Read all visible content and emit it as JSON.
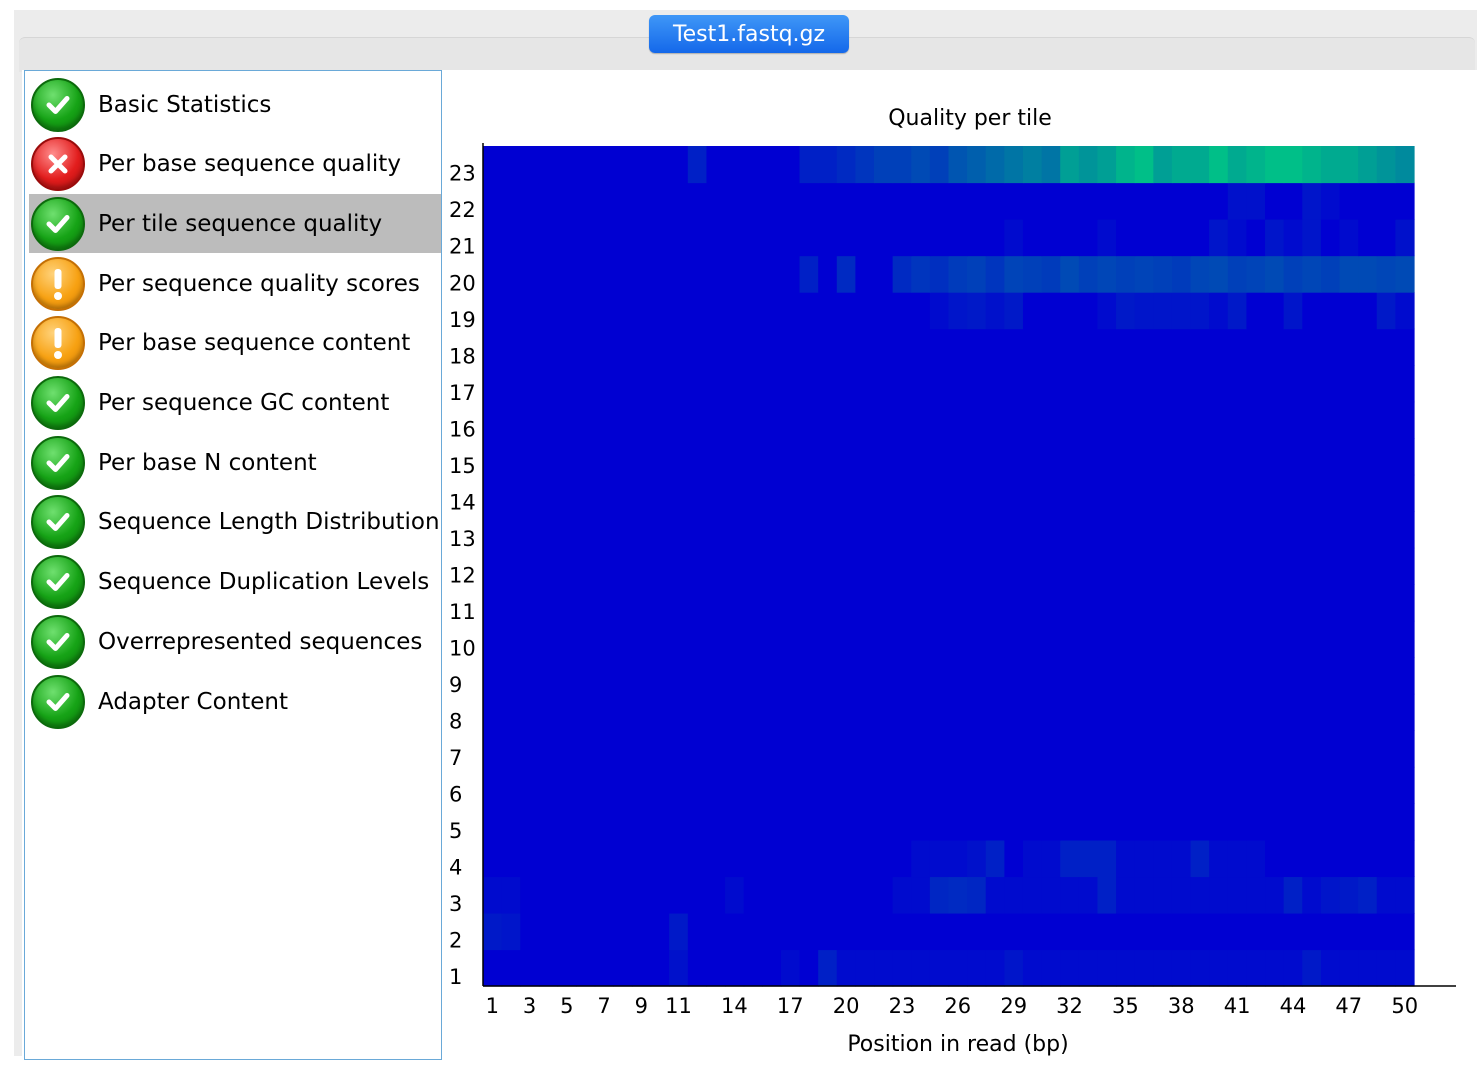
{
  "tab": {
    "label": "Test1.fastq.gz"
  },
  "modules": [
    {
      "label": "Basic Statistics",
      "status": "pass",
      "icon": "check-icon"
    },
    {
      "label": "Per base sequence quality",
      "status": "fail",
      "icon": "cross-icon"
    },
    {
      "label": "Per tile sequence quality",
      "status": "pass",
      "icon": "check-icon",
      "selected": true
    },
    {
      "label": "Per sequence quality scores",
      "status": "warn",
      "icon": "warning-icon"
    },
    {
      "label": "Per base sequence content",
      "status": "warn",
      "icon": "warning-icon"
    },
    {
      "label": "Per sequence GC content",
      "status": "pass",
      "icon": "check-icon"
    },
    {
      "label": "Per base N content",
      "status": "pass",
      "icon": "check-icon"
    },
    {
      "label": "Sequence Length Distribution",
      "status": "pass",
      "icon": "check-icon"
    },
    {
      "label": "Sequence Duplication Levels",
      "status": "pass",
      "icon": "check-icon"
    },
    {
      "label": "Overrepresented sequences",
      "status": "pass",
      "icon": "check-icon"
    },
    {
      "label": "Adapter Content",
      "status": "pass",
      "icon": "check-icon"
    }
  ],
  "colors": {
    "pass": "#16a316",
    "fail": "#e21d1d",
    "warn": "#f7a112",
    "heat_base": "#0000d2",
    "heat_high": "#00d480",
    "tab_blue": "#1468ea",
    "selected_row": "#bcbcbc"
  },
  "chart_data": {
    "type": "heatmap",
    "title": "Quality per tile",
    "xlabel": "Position in read (bp)",
    "ylabel": "",
    "x_positions": [
      1,
      2,
      3,
      4,
      5,
      6,
      7,
      8,
      9,
      10,
      11,
      12,
      13,
      14,
      15,
      16,
      17,
      18,
      19,
      20,
      21,
      22,
      23,
      24,
      25,
      26,
      27,
      28,
      29,
      30,
      31,
      32,
      33,
      34,
      35,
      36,
      37,
      38,
      39,
      40,
      41,
      42,
      43,
      44,
      45,
      46,
      47,
      48,
      49,
      50
    ],
    "x_tick_labels": [
      "1",
      "3",
      "5",
      "7",
      "9",
      "11",
      "14",
      "17",
      "20",
      "23",
      "26",
      "29",
      "32",
      "35",
      "38",
      "41",
      "44",
      "47",
      "50"
    ],
    "y_tick_labels": [
      "1",
      "2",
      "3",
      "4",
      "5",
      "6",
      "7",
      "8",
      "9",
      "10",
      "11",
      "12",
      "13",
      "14",
      "15",
      "16",
      "17",
      "18",
      "19",
      "20",
      "21",
      "22",
      "23"
    ],
    "value_note": "0 = lowest deviation (dark blue), 1 = highest (green)",
    "rows": {
      "23": [
        0,
        0,
        0,
        0,
        0,
        0,
        0,
        0,
        0,
        0,
        0,
        0.15,
        0,
        0,
        0,
        0,
        0,
        0.15,
        0.15,
        0.2,
        0.25,
        0.3,
        0.3,
        0.35,
        0.3,
        0.4,
        0.45,
        0.5,
        0.55,
        0.6,
        0.55,
        0.75,
        0.7,
        0.75,
        0.85,
        0.9,
        0.75,
        0.8,
        0.8,
        0.9,
        0.8,
        0.85,
        0.9,
        0.9,
        0.85,
        0.8,
        0.8,
        0.75,
        0.7,
        0.65
      ],
      "22": [
        0,
        0,
        0,
        0,
        0,
        0,
        0,
        0,
        0,
        0,
        0,
        0,
        0,
        0,
        0,
        0,
        0,
        0,
        0,
        0,
        0,
        0,
        0,
        0,
        0,
        0,
        0,
        0,
        0,
        0,
        0,
        0,
        0,
        0,
        0,
        0,
        0,
        0,
        0,
        0,
        0.08,
        0.08,
        0,
        0,
        0.1,
        0.05,
        0,
        0,
        0,
        0
      ],
      "21": [
        0,
        0,
        0,
        0,
        0,
        0,
        0,
        0,
        0,
        0,
        0,
        0,
        0,
        0,
        0,
        0,
        0,
        0,
        0,
        0,
        0,
        0,
        0,
        0,
        0,
        0,
        0,
        0,
        0.05,
        0,
        0,
        0,
        0,
        0.05,
        0,
        0,
        0,
        0,
        0,
        0.1,
        0.05,
        0,
        0.1,
        0.05,
        0.1,
        0,
        0.05,
        0,
        0,
        0.08
      ],
      "20": [
        0,
        0,
        0,
        0,
        0,
        0,
        0,
        0,
        0,
        0,
        0,
        0,
        0,
        0,
        0,
        0,
        0,
        0.15,
        0,
        0.2,
        0,
        0,
        0.2,
        0.25,
        0.22,
        0.28,
        0.3,
        0.25,
        0.32,
        0.3,
        0.28,
        0.35,
        0.3,
        0.33,
        0.3,
        0.32,
        0.3,
        0.28,
        0.33,
        0.35,
        0.3,
        0.32,
        0.35,
        0.3,
        0.33,
        0.3,
        0.35,
        0.35,
        0.33,
        0.35
      ],
      "19": [
        0,
        0,
        0,
        0,
        0,
        0,
        0,
        0,
        0,
        0,
        0,
        0,
        0,
        0,
        0,
        0,
        0,
        0,
        0,
        0,
        0,
        0,
        0,
        0,
        0.05,
        0.1,
        0.12,
        0.08,
        0.12,
        0,
        0,
        0,
        0,
        0.05,
        0.12,
        0.1,
        0.1,
        0.1,
        0.1,
        0.05,
        0.12,
        0,
        0,
        0.1,
        0,
        0,
        0,
        0,
        0.12,
        0.05
      ],
      "18": [
        0,
        0,
        0,
        0,
        0,
        0,
        0,
        0,
        0,
        0,
        0,
        0,
        0,
        0,
        0,
        0,
        0,
        0,
        0,
        0,
        0,
        0,
        0,
        0,
        0,
        0,
        0,
        0,
        0,
        0,
        0,
        0,
        0,
        0,
        0,
        0,
        0,
        0,
        0,
        0,
        0,
        0,
        0,
        0,
        0,
        0,
        0,
        0,
        0,
        0
      ],
      "17": [
        0,
        0,
        0,
        0,
        0,
        0,
        0,
        0,
        0,
        0,
        0,
        0,
        0,
        0,
        0,
        0,
        0,
        0,
        0,
        0,
        0,
        0,
        0,
        0,
        0,
        0,
        0,
        0,
        0,
        0,
        0,
        0,
        0,
        0,
        0,
        0,
        0,
        0,
        0,
        0,
        0,
        0,
        0,
        0,
        0,
        0,
        0,
        0,
        0,
        0
      ],
      "16": [
        0,
        0,
        0,
        0,
        0,
        0,
        0,
        0,
        0,
        0,
        0,
        0,
        0,
        0,
        0,
        0,
        0,
        0,
        0,
        0,
        0,
        0,
        0,
        0,
        0,
        0,
        0,
        0,
        0,
        0,
        0,
        0,
        0,
        0,
        0,
        0,
        0,
        0,
        0,
        0,
        0,
        0,
        0,
        0,
        0,
        0,
        0,
        0,
        0,
        0
      ],
      "15": [
        0,
        0,
        0,
        0,
        0,
        0,
        0,
        0,
        0,
        0,
        0,
        0,
        0,
        0,
        0,
        0,
        0,
        0,
        0,
        0,
        0,
        0,
        0,
        0,
        0,
        0,
        0,
        0,
        0,
        0,
        0,
        0,
        0,
        0,
        0,
        0,
        0,
        0,
        0,
        0,
        0,
        0,
        0,
        0,
        0,
        0,
        0,
        0,
        0,
        0
      ],
      "14": [
        0,
        0,
        0,
        0,
        0,
        0,
        0,
        0,
        0,
        0,
        0,
        0,
        0,
        0,
        0,
        0,
        0,
        0,
        0,
        0,
        0,
        0,
        0,
        0,
        0,
        0,
        0,
        0,
        0,
        0,
        0,
        0,
        0,
        0,
        0,
        0,
        0,
        0,
        0,
        0,
        0,
        0,
        0,
        0,
        0,
        0,
        0,
        0,
        0,
        0
      ],
      "13": [
        0,
        0,
        0,
        0,
        0,
        0,
        0,
        0,
        0,
        0,
        0,
        0,
        0,
        0,
        0,
        0,
        0,
        0,
        0,
        0,
        0,
        0,
        0,
        0,
        0,
        0,
        0,
        0,
        0,
        0,
        0,
        0,
        0,
        0,
        0,
        0,
        0,
        0,
        0,
        0,
        0,
        0,
        0,
        0,
        0,
        0,
        0,
        0,
        0,
        0
      ],
      "12": [
        0,
        0,
        0,
        0,
        0,
        0,
        0,
        0,
        0,
        0,
        0,
        0,
        0,
        0,
        0,
        0,
        0,
        0,
        0,
        0,
        0,
        0,
        0,
        0,
        0,
        0,
        0,
        0,
        0,
        0,
        0,
        0,
        0,
        0,
        0,
        0,
        0,
        0,
        0,
        0,
        0,
        0,
        0,
        0,
        0,
        0,
        0,
        0,
        0,
        0
      ],
      "11": [
        0,
        0,
        0,
        0,
        0,
        0,
        0,
        0,
        0,
        0,
        0,
        0,
        0,
        0,
        0,
        0,
        0,
        0,
        0,
        0,
        0,
        0,
        0,
        0,
        0,
        0,
        0,
        0,
        0,
        0,
        0,
        0,
        0,
        0,
        0,
        0,
        0,
        0,
        0,
        0,
        0,
        0,
        0,
        0,
        0,
        0,
        0,
        0,
        0,
        0
      ],
      "10": [
        0,
        0,
        0,
        0,
        0,
        0,
        0,
        0,
        0,
        0,
        0,
        0,
        0,
        0,
        0,
        0,
        0,
        0,
        0,
        0,
        0,
        0,
        0,
        0,
        0,
        0,
        0,
        0,
        0,
        0,
        0,
        0,
        0,
        0,
        0,
        0,
        0,
        0,
        0,
        0,
        0,
        0,
        0,
        0,
        0,
        0,
        0,
        0,
        0,
        0
      ],
      "9": [
        0,
        0,
        0,
        0,
        0,
        0,
        0,
        0,
        0,
        0,
        0,
        0,
        0,
        0,
        0,
        0,
        0,
        0,
        0,
        0,
        0,
        0,
        0,
        0,
        0,
        0,
        0,
        0,
        0,
        0,
        0,
        0,
        0,
        0,
        0,
        0,
        0,
        0,
        0,
        0,
        0,
        0,
        0,
        0,
        0,
        0,
        0,
        0,
        0,
        0
      ],
      "8": [
        0,
        0,
        0,
        0,
        0,
        0,
        0,
        0,
        0,
        0,
        0,
        0,
        0,
        0,
        0,
        0,
        0,
        0,
        0,
        0,
        0,
        0,
        0,
        0,
        0,
        0,
        0,
        0,
        0,
        0,
        0,
        0,
        0,
        0,
        0,
        0,
        0,
        0,
        0,
        0,
        0,
        0,
        0,
        0,
        0,
        0,
        0,
        0,
        0,
        0
      ],
      "7": [
        0,
        0,
        0,
        0,
        0,
        0,
        0,
        0,
        0,
        0,
        0,
        0,
        0,
        0,
        0,
        0,
        0,
        0,
        0,
        0,
        0,
        0,
        0,
        0,
        0,
        0,
        0,
        0,
        0,
        0,
        0,
        0,
        0,
        0,
        0,
        0,
        0,
        0,
        0,
        0,
        0,
        0,
        0,
        0,
        0,
        0,
        0,
        0,
        0,
        0
      ],
      "6": [
        0,
        0,
        0,
        0,
        0,
        0,
        0,
        0,
        0,
        0,
        0,
        0,
        0,
        0,
        0,
        0,
        0,
        0,
        0,
        0,
        0,
        0,
        0,
        0,
        0,
        0,
        0,
        0,
        0,
        0,
        0,
        0,
        0,
        0,
        0,
        0,
        0,
        0,
        0,
        0,
        0,
        0,
        0,
        0,
        0,
        0,
        0,
        0,
        0,
        0
      ],
      "5": [
        0,
        0,
        0,
        0,
        0,
        0,
        0,
        0,
        0,
        0,
        0,
        0,
        0,
        0,
        0,
        0,
        0,
        0,
        0,
        0,
        0,
        0,
        0,
        0,
        0,
        0,
        0,
        0,
        0,
        0,
        0,
        0,
        0,
        0,
        0,
        0,
        0,
        0,
        0,
        0,
        0,
        0,
        0,
        0,
        0,
        0,
        0,
        0,
        0,
        0
      ],
      "4": [
        0,
        0,
        0,
        0,
        0,
        0,
        0,
        0,
        0,
        0,
        0,
        0,
        0,
        0,
        0,
        0,
        0,
        0,
        0,
        0,
        0,
        0,
        0,
        0.05,
        0.05,
        0.05,
        0.08,
        0.15,
        0,
        0.05,
        0.05,
        0.15,
        0.15,
        0.15,
        0.05,
        0.05,
        0.05,
        0.05,
        0.15,
        0.05,
        0.05,
        0.05,
        0,
        0,
        0,
        0,
        0,
        0,
        0,
        0
      ],
      "3": [
        0.05,
        0.05,
        0,
        0,
        0,
        0,
        0,
        0,
        0,
        0,
        0,
        0,
        0,
        0.05,
        0,
        0,
        0,
        0,
        0,
        0,
        0,
        0,
        0.05,
        0.05,
        0.18,
        0.2,
        0.18,
        0.05,
        0.05,
        0.05,
        0.05,
        0.05,
        0.05,
        0.15,
        0.05,
        0.05,
        0.05,
        0.05,
        0.05,
        0.05,
        0.05,
        0.05,
        0.05,
        0.15,
        0.05,
        0.1,
        0.12,
        0.15,
        0.05,
        0.05
      ],
      "2": [
        0.12,
        0.1,
        0,
        0,
        0,
        0,
        0,
        0,
        0,
        0,
        0.12,
        0,
        0,
        0,
        0,
        0,
        0,
        0,
        0,
        0,
        0,
        0,
        0,
        0,
        0,
        0,
        0,
        0,
        0,
        0,
        0,
        0,
        0,
        0,
        0,
        0,
        0,
        0,
        0,
        0,
        0,
        0,
        0,
        0,
        0,
        0,
        0,
        0,
        0,
        0
      ],
      "1": [
        0,
        0,
        0,
        0,
        0,
        0,
        0,
        0,
        0,
        0,
        0.08,
        0,
        0,
        0,
        0,
        0,
        0.05,
        0,
        0.15,
        0.05,
        0.05,
        0.05,
        0.05,
        0.05,
        0.05,
        0.05,
        0.05,
        0.05,
        0.1,
        0.05,
        0.05,
        0.05,
        0.05,
        0.05,
        0.05,
        0.05,
        0.05,
        0.05,
        0.05,
        0.05,
        0.05,
        0.05,
        0.05,
        0.05,
        0.12,
        0.05,
        0.05,
        0.05,
        0.05,
        0.05
      ]
    }
  }
}
